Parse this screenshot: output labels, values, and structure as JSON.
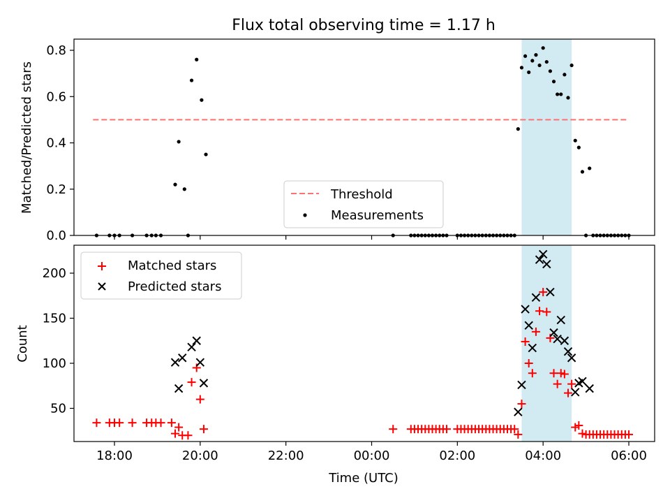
{
  "title": "Flux total observing time = 1.17 h",
  "highlight_color": "#add8e6",
  "x_ticks": [
    "18:00",
    "20:00",
    "22:00",
    "00:00",
    "02:00",
    "04:00",
    "06:00"
  ],
  "xlabel": "Time (UTC)",
  "chart_data": [
    {
      "type": "scatter",
      "ylabel": "Matched/Predicted stars",
      "ylim": [
        0,
        0.85
      ],
      "y_ticks": [
        "0.0",
        "0.2",
        "0.4",
        "0.6",
        "0.8"
      ],
      "highlight_span": [
        "03:30",
        "04:40"
      ],
      "legend": {
        "placement": "lower-center",
        "entries": [
          "Threshold",
          "Measurements"
        ]
      },
      "threshold": {
        "name": "Threshold",
        "value": 0.5,
        "x_range": [
          "17:30",
          "06:00"
        ],
        "color": "#ff7070"
      },
      "series": [
        {
          "name": "Measurements",
          "color": "#000000",
          "points": [
            [
              "17:35",
              0
            ],
            [
              "17:53",
              0
            ],
            [
              "18:00",
              0
            ],
            [
              "18:07",
              0
            ],
            [
              "18:25",
              0
            ],
            [
              "18:45",
              0
            ],
            [
              "18:52",
              0
            ],
            [
              "18:58",
              0
            ],
            [
              "19:05",
              0
            ],
            [
              "19:25",
              0.22
            ],
            [
              "19:30",
              0.405
            ],
            [
              "19:38",
              0.2
            ],
            [
              "19:43",
              0
            ],
            [
              "19:48",
              0.67
            ],
            [
              "19:55",
              0.76
            ],
            [
              "20:02",
              0.585
            ],
            [
              "20:08",
              0.35
            ],
            [
              "00:30",
              0
            ],
            [
              "00:55",
              0
            ],
            [
              "01:00",
              0
            ],
            [
              "01:05",
              0
            ],
            [
              "01:10",
              0
            ],
            [
              "01:15",
              0
            ],
            [
              "01:20",
              0
            ],
            [
              "01:25",
              0
            ],
            [
              "01:30",
              0
            ],
            [
              "01:35",
              0
            ],
            [
              "01:40",
              0
            ],
            [
              "01:45",
              0
            ],
            [
              "02:00",
              0
            ],
            [
              "02:05",
              0
            ],
            [
              "02:10",
              0
            ],
            [
              "02:15",
              0
            ],
            [
              "02:20",
              0
            ],
            [
              "02:25",
              0
            ],
            [
              "02:30",
              0
            ],
            [
              "02:35",
              0
            ],
            [
              "02:40",
              0
            ],
            [
              "02:45",
              0
            ],
            [
              "02:50",
              0
            ],
            [
              "02:55",
              0
            ],
            [
              "03:00",
              0
            ],
            [
              "03:05",
              0
            ],
            [
              "03:10",
              0
            ],
            [
              "03:15",
              0
            ],
            [
              "03:20",
              0
            ],
            [
              "03:25",
              0.46
            ],
            [
              "03:30",
              0.725
            ],
            [
              "03:35",
              0.775
            ],
            [
              "03:40",
              0.705
            ],
            [
              "03:45",
              0.755
            ],
            [
              "03:50",
              0.78
            ],
            [
              "03:55",
              0.735
            ],
            [
              "04:00",
              0.81
            ],
            [
              "04:05",
              0.75
            ],
            [
              "04:10",
              0.71
            ],
            [
              "04:15",
              0.665
            ],
            [
              "04:20",
              0.61
            ],
            [
              "04:25",
              0.61
            ],
            [
              "04:30",
              0.695
            ],
            [
              "04:35",
              0.595
            ],
            [
              "04:40",
              0.735
            ],
            [
              "04:45",
              0.41
            ],
            [
              "04:50",
              0.38
            ],
            [
              "04:55",
              0.275
            ],
            [
              "05:00",
              0
            ],
            [
              "05:05",
              0.29
            ],
            [
              "05:10",
              0
            ],
            [
              "05:15",
              0
            ],
            [
              "05:20",
              0
            ],
            [
              "05:25",
              0
            ],
            [
              "05:30",
              0
            ],
            [
              "05:35",
              0
            ],
            [
              "05:40",
              0
            ],
            [
              "05:45",
              0
            ],
            [
              "05:50",
              0
            ],
            [
              "05:55",
              0
            ],
            [
              "06:00",
              0
            ]
          ]
        }
      ]
    },
    {
      "type": "scatter",
      "ylabel": "Count",
      "ylim": [
        10,
        230
      ],
      "y_ticks": [
        "50",
        "100",
        "150",
        "200"
      ],
      "highlight_span": [
        "03:30",
        "04:40"
      ],
      "legend": {
        "placement": "upper-left",
        "entries": [
          "Matched stars",
          "Predicted stars"
        ]
      },
      "series": [
        {
          "name": "Matched stars",
          "marker": "plus",
          "color": "#ff0000",
          "points": [
            [
              "17:35",
              34
            ],
            [
              "17:53",
              34
            ],
            [
              "18:00",
              34
            ],
            [
              "18:07",
              34
            ],
            [
              "18:25",
              34
            ],
            [
              "18:45",
              34
            ],
            [
              "18:52",
              34
            ],
            [
              "18:58",
              34
            ],
            [
              "19:05",
              34
            ],
            [
              "19:20",
              34
            ],
            [
              "19:25",
              22
            ],
            [
              "19:30",
              29
            ],
            [
              "19:35",
              20
            ],
            [
              "19:43",
              20
            ],
            [
              "19:48",
              79
            ],
            [
              "19:55",
              95
            ],
            [
              "20:00",
              60
            ],
            [
              "20:05",
              27
            ],
            [
              "00:30",
              27
            ],
            [
              "00:55",
              27
            ],
            [
              "01:00",
              27
            ],
            [
              "01:05",
              27
            ],
            [
              "01:10",
              27
            ],
            [
              "01:15",
              27
            ],
            [
              "01:20",
              27
            ],
            [
              "01:25",
              27
            ],
            [
              "01:30",
              27
            ],
            [
              "01:35",
              27
            ],
            [
              "01:40",
              27
            ],
            [
              "01:45",
              27
            ],
            [
              "02:00",
              27
            ],
            [
              "02:05",
              27
            ],
            [
              "02:10",
              27
            ],
            [
              "02:15",
              27
            ],
            [
              "02:20",
              27
            ],
            [
              "02:25",
              27
            ],
            [
              "02:30",
              27
            ],
            [
              "02:35",
              27
            ],
            [
              "02:40",
              27
            ],
            [
              "02:45",
              27
            ],
            [
              "02:50",
              27
            ],
            [
              "02:55",
              27
            ],
            [
              "03:00",
              27
            ],
            [
              "03:05",
              27
            ],
            [
              "03:10",
              27
            ],
            [
              "03:15",
              27
            ],
            [
              "03:20",
              27
            ],
            [
              "03:25",
              21
            ],
            [
              "03:30",
              55
            ],
            [
              "03:35",
              124
            ],
            [
              "03:40",
              100
            ],
            [
              "03:45",
              89
            ],
            [
              "03:50",
              135
            ],
            [
              "03:55",
              158
            ],
            [
              "04:00",
              179
            ],
            [
              "04:05",
              157
            ],
            [
              "04:10",
              128
            ],
            [
              "04:15",
              89
            ],
            [
              "04:20",
              77
            ],
            [
              "04:25",
              89
            ],
            [
              "04:30",
              88
            ],
            [
              "04:35",
              67
            ],
            [
              "04:40",
              77
            ],
            [
              "04:45",
              29
            ],
            [
              "04:50",
              31
            ],
            [
              "04:55",
              22
            ],
            [
              "05:00",
              21
            ],
            [
              "05:05",
              21
            ],
            [
              "05:10",
              21
            ],
            [
              "05:15",
              21
            ],
            [
              "05:20",
              21
            ],
            [
              "05:25",
              21
            ],
            [
              "05:30",
              21
            ],
            [
              "05:35",
              21
            ],
            [
              "05:40",
              21
            ],
            [
              "05:45",
              21
            ],
            [
              "05:50",
              21
            ],
            [
              "05:55",
              21
            ],
            [
              "06:00",
              21
            ]
          ]
        },
        {
          "name": "Predicted stars",
          "marker": "x",
          "color": "#000000",
          "points": [
            [
              "19:25",
              101
            ],
            [
              "19:30",
              72
            ],
            [
              "19:35",
              106
            ],
            [
              "19:48",
              118
            ],
            [
              "19:55",
              125
            ],
            [
              "20:00",
              101
            ],
            [
              "20:05",
              78
            ],
            [
              "03:25",
              46
            ],
            [
              "03:30",
              76
            ],
            [
              "03:35",
              160
            ],
            [
              "03:40",
              142
            ],
            [
              "03:45",
              117
            ],
            [
              "03:50",
              173
            ],
            [
              "03:55",
              215
            ],
            [
              "04:00",
              221
            ],
            [
              "04:05",
              210
            ],
            [
              "04:10",
              179
            ],
            [
              "04:15",
              134
            ],
            [
              "04:20",
              127
            ],
            [
              "04:25",
              148
            ],
            [
              "04:30",
              125
            ],
            [
              "04:35",
              113
            ],
            [
              "04:40",
              106
            ],
            [
              "04:45",
              68
            ],
            [
              "04:50",
              78
            ],
            [
              "04:55",
              80
            ],
            [
              "05:05",
              72
            ]
          ]
        }
      ]
    }
  ]
}
